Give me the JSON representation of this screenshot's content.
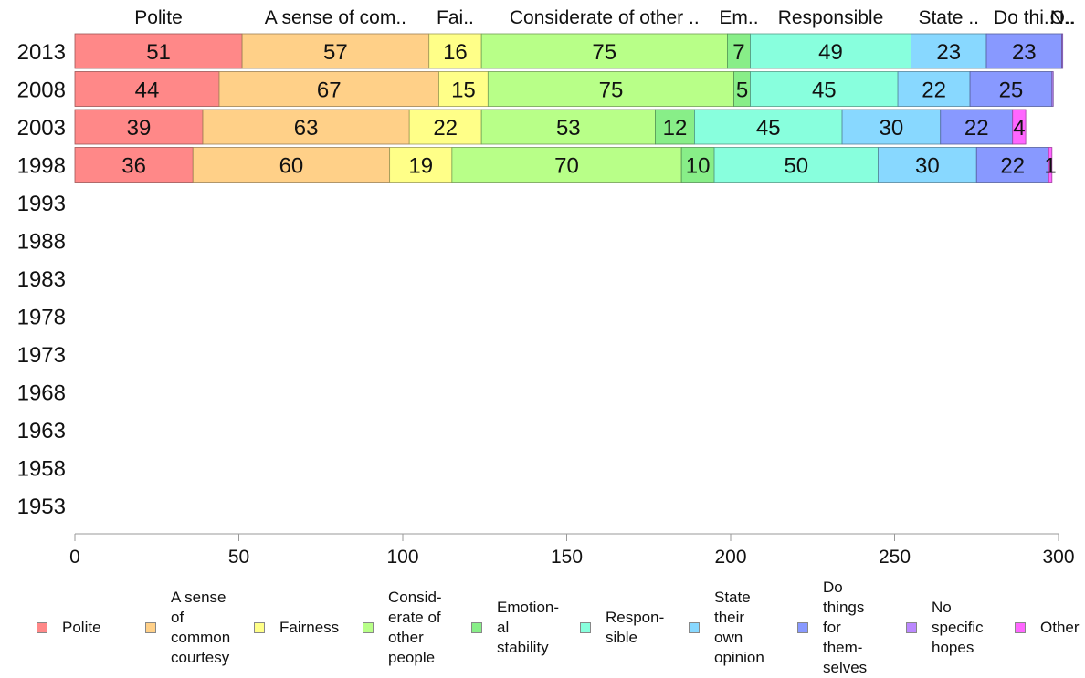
{
  "chart_data": {
    "type": "bar",
    "orientation": "horizontal",
    "stacked": true,
    "categories": [
      "2013",
      "2008",
      "2003",
      "1998",
      "1993",
      "1988",
      "1983",
      "1978",
      "1973",
      "1968",
      "1963",
      "1958",
      "1953"
    ],
    "xlim": [
      0,
      300
    ],
    "xticks": [
      0,
      50,
      100,
      150,
      200,
      250,
      300
    ],
    "grid": false,
    "legend_position": "bottom",
    "series": [
      {
        "name": "Polite",
        "column_label": "Polite",
        "legend_label": "Polite",
        "color": "#ff8888",
        "values": [
          51,
          44,
          39,
          36,
          null,
          null,
          null,
          null,
          null,
          null,
          null,
          null,
          null
        ]
      },
      {
        "name": "A sense of common courtesy",
        "column_label": "A sense of com..",
        "legend_label": "A sense\nof\ncommon\ncourtesy",
        "color": "#ffd088",
        "values": [
          57,
          67,
          63,
          60,
          null,
          null,
          null,
          null,
          null,
          null,
          null,
          null,
          null
        ]
      },
      {
        "name": "Fairness",
        "column_label": "Fai..",
        "legend_label": "Fairness",
        "color": "#ffff88",
        "values": [
          16,
          15,
          22,
          19,
          null,
          null,
          null,
          null,
          null,
          null,
          null,
          null,
          null
        ]
      },
      {
        "name": "Considerate of other people",
        "column_label": "Considerate of other ..",
        "legend_label": "Consid-\nerate of\nother\npeople",
        "color": "#b8ff88",
        "values": [
          75,
          75,
          53,
          70,
          null,
          null,
          null,
          null,
          null,
          null,
          null,
          null,
          null
        ]
      },
      {
        "name": "Emotional stability",
        "column_label": "Em..",
        "legend_label": "Emotion-\nal\nstability",
        "color": "#88ee88",
        "values": [
          7,
          5,
          12,
          10,
          null,
          null,
          null,
          null,
          null,
          null,
          null,
          null,
          null
        ]
      },
      {
        "name": "Responsible",
        "column_label": "Responsible",
        "legend_label": "Respon-\nsible",
        "color": "#88ffdd",
        "values": [
          49,
          45,
          45,
          50,
          null,
          null,
          null,
          null,
          null,
          null,
          null,
          null,
          null
        ]
      },
      {
        "name": "State their own opinion",
        "column_label": "State ..",
        "legend_label": "State\ntheir\nown\nopinion",
        "color": "#88d8ff",
        "values": [
          23,
          22,
          30,
          30,
          null,
          null,
          null,
          null,
          null,
          null,
          null,
          null,
          null
        ]
      },
      {
        "name": "Do things for themselves",
        "column_label": "Do thi..",
        "legend_label": "Do\nthings\nfor\nthem-\nselves",
        "color": "#8899ff",
        "values": [
          23,
          25,
          22,
          22,
          null,
          null,
          null,
          null,
          null,
          null,
          null,
          null,
          null
        ]
      },
      {
        "name": "No specific hopes",
        "column_label": "N..",
        "legend_label": "No\nspecific\nhopes",
        "color": "#bb88ff",
        "values": [
          0.3,
          0.4,
          0,
          0,
          null,
          null,
          null,
          null,
          null,
          null,
          null,
          null,
          null
        ]
      },
      {
        "name": "Other",
        "column_label": "O..",
        "legend_label": "Other",
        "color": "#ff66ff",
        "values": [
          0,
          0,
          4,
          1,
          null,
          null,
          null,
          null,
          null,
          null,
          null,
          null,
          null
        ]
      }
    ]
  }
}
